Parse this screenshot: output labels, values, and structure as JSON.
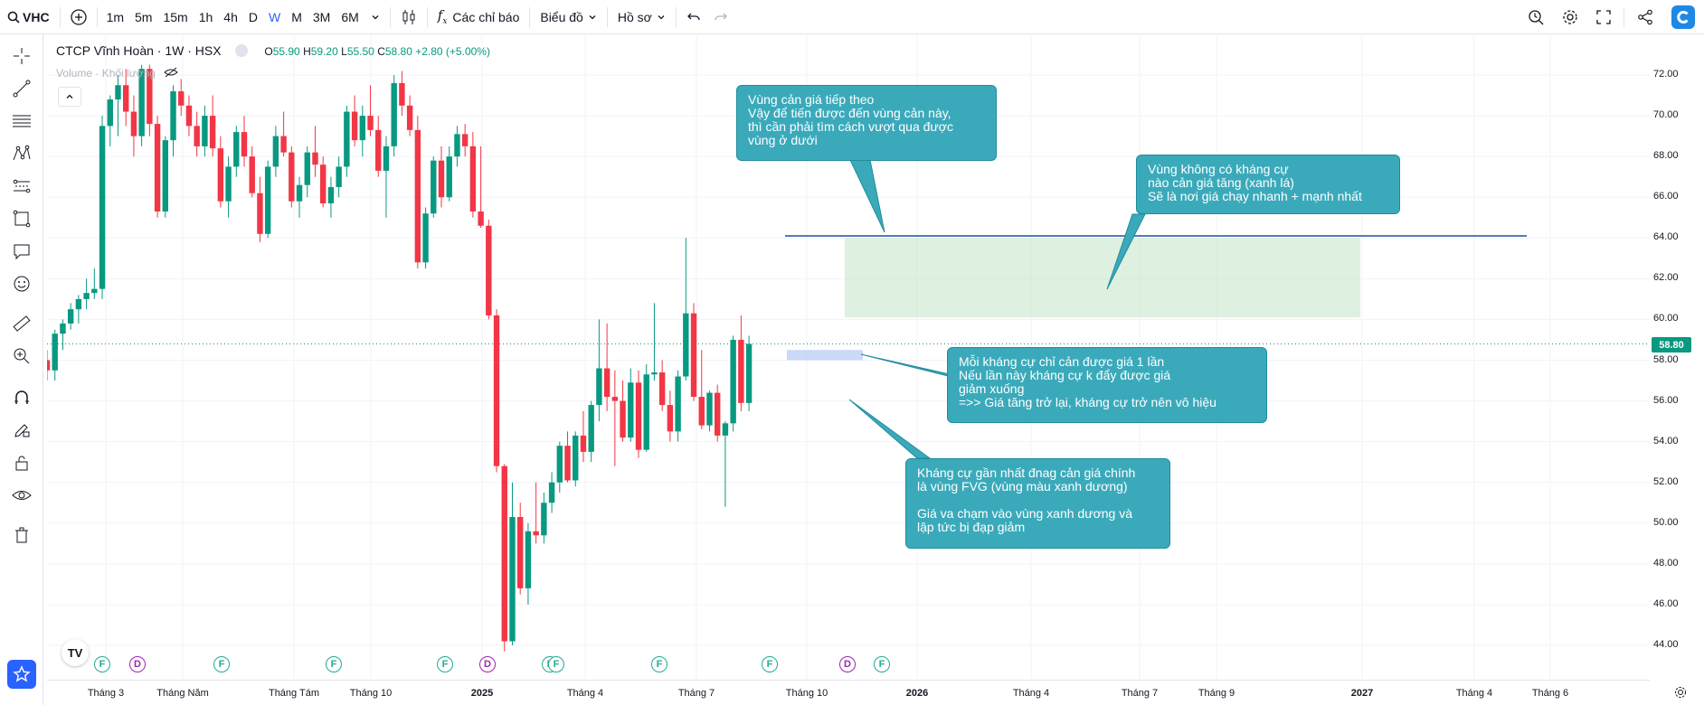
{
  "toolbar": {
    "symbol": "VHC",
    "intervals": [
      "1m",
      "5m",
      "15m",
      "1h",
      "4h",
      "D",
      "W",
      "M",
      "3M",
      "6M"
    ],
    "active_interval": "W",
    "indicators_label": "Các chỉ báo",
    "chart_label": "Biểu đồ",
    "profile_label": "Hồ sơ"
  },
  "legend": {
    "title": "CTCP Vĩnh Hoàn · 1W · HSX",
    "o_label": "O",
    "o": "55.90",
    "h_label": "H",
    "h": "59.20",
    "l_label": "L",
    "l": "55.50",
    "c_label": "C",
    "c": "58.80",
    "change": "+2.80 (+5.00%)",
    "volume_label": "Volume · Khối lượng"
  },
  "colors": {
    "up": "#089981",
    "down": "#f23645",
    "accent": "#2962ff",
    "note_bg": "#3aaabb"
  },
  "price_axis": {
    "ticks": [
      "72.00",
      "70.00",
      "68.00",
      "66.00",
      "64.00",
      "62.00",
      "60.00",
      "58.00",
      "56.00",
      "54.00",
      "52.00",
      "50.00",
      "48.00",
      "46.00",
      "44.00"
    ],
    "current_price": "58.80"
  },
  "time_axis": {
    "labels": [
      "Tháng 3",
      "Tháng Năm",
      "Tháng Tám",
      "Tháng 10",
      "2025",
      "Tháng 4",
      "Tháng 7",
      "Tháng 10",
      "2026",
      "Tháng 4",
      "Tháng 7",
      "Tháng 9",
      "2027",
      "Tháng 4",
      "Tháng 6"
    ]
  },
  "events": [
    "F",
    "D",
    "F",
    "F",
    "F",
    "D",
    "F",
    "F",
    "F",
    "F",
    "D",
    "F"
  ],
  "notes": {
    "next_resistance": [
      "Vùng cản giá tiếp theo",
      "Vậy để tiến được đến vùng cản này,",
      "thì cần phải tìm cách vượt qua được",
      "vùng ở dưới"
    ],
    "no_resistance": [
      "Vùng không có kháng cự",
      "nào cản giá tăng (xanh lá)",
      "Sẽ là nơi giá chạy nhanh + mạnh nhất"
    ],
    "each_resistance": [
      "Mỗi kháng cự chỉ cản được giá 1 lần",
      "Nếu lần này kháng cự k đẩy được giá",
      "giảm xuống",
      "=>> Giá tăng trở lại, kháng cự trở nên vô hiệu"
    ],
    "nearest_resistance": [
      "Kháng cự gần nhất đnag cản giá chính",
      "là vùng FVG (vùng màu xanh dương)",
      "",
      "Giá va chạm vào vùng xanh dương và",
      "lập tức bị đạp giảm"
    ]
  },
  "chart_data": {
    "type": "candlestick",
    "series": [
      {
        "name": "VHC",
        "ohlc": [
          [
            58.0,
            58.5,
            57.0,
            57.5
          ],
          [
            57.5,
            59.5,
            57.0,
            59.3
          ],
          [
            59.3,
            60.0,
            58.5,
            59.8
          ],
          [
            59.8,
            60.8,
            59.5,
            60.5
          ],
          [
            60.5,
            61.2,
            59.8,
            61.0
          ],
          [
            61.0,
            62.0,
            60.5,
            61.3
          ],
          [
            61.3,
            62.5,
            61.0,
            61.5
          ],
          [
            61.5,
            70.0,
            61.0,
            69.5
          ],
          [
            69.5,
            71.0,
            68.5,
            70.8
          ],
          [
            70.8,
            72.0,
            69.0,
            71.5
          ],
          [
            71.5,
            72.3,
            69.5,
            70.2
          ],
          [
            70.2,
            71.0,
            68.0,
            69.0
          ],
          [
            69.0,
            72.5,
            68.5,
            72.3
          ],
          [
            72.3,
            72.5,
            69.0,
            69.6
          ],
          [
            69.6,
            70.0,
            65.0,
            65.3
          ],
          [
            65.3,
            69.0,
            65.0,
            68.8
          ],
          [
            68.8,
            71.5,
            68.0,
            71.2
          ],
          [
            71.2,
            71.8,
            70.0,
            70.5
          ],
          [
            70.5,
            71.0,
            69.0,
            69.5
          ],
          [
            69.5,
            70.2,
            68.0,
            68.5
          ],
          [
            68.5,
            70.5,
            68.0,
            70.0
          ],
          [
            70.0,
            71.0,
            68.0,
            68.4
          ],
          [
            68.4,
            69.0,
            65.5,
            65.8
          ],
          [
            65.8,
            68.0,
            65.0,
            67.5
          ],
          [
            67.5,
            69.5,
            67.0,
            69.2
          ],
          [
            69.2,
            70.0,
            67.5,
            68.0
          ],
          [
            68.0,
            68.5,
            66.0,
            66.2
          ],
          [
            66.2,
            67.0,
            63.8,
            64.2
          ],
          [
            64.2,
            67.8,
            64.0,
            67.5
          ],
          [
            67.5,
            69.5,
            67.0,
            69.0
          ],
          [
            69.0,
            70.2,
            68.0,
            68.2
          ],
          [
            68.2,
            68.5,
            65.5,
            65.8
          ],
          [
            65.8,
            67.0,
            65.0,
            66.6
          ],
          [
            66.6,
            68.5,
            66.0,
            68.2
          ],
          [
            68.2,
            69.5,
            67.0,
            67.6
          ],
          [
            67.6,
            68.0,
            65.5,
            65.7
          ],
          [
            65.7,
            67.0,
            65.0,
            66.5
          ],
          [
            66.5,
            68.0,
            66.0,
            67.5
          ],
          [
            67.5,
            70.5,
            67.0,
            70.2
          ],
          [
            70.2,
            71.0,
            68.5,
            68.8
          ],
          [
            68.8,
            70.5,
            68.0,
            70.0
          ],
          [
            70.0,
            71.5,
            69.0,
            69.3
          ],
          [
            69.3,
            70.0,
            67.0,
            67.3
          ],
          [
            67.3,
            69.0,
            65.0,
            68.5
          ],
          [
            68.5,
            72.0,
            68.0,
            71.6
          ],
          [
            71.6,
            72.2,
            70.0,
            70.5
          ],
          [
            70.5,
            71.0,
            69.0,
            69.3
          ],
          [
            69.3,
            70.0,
            62.5,
            62.8
          ],
          [
            62.8,
            65.5,
            62.5,
            65.2
          ],
          [
            65.2,
            68.0,
            65.0,
            67.8
          ],
          [
            67.8,
            68.5,
            65.5,
            66.0
          ],
          [
            66.0,
            68.5,
            65.8,
            68.0
          ],
          [
            68.0,
            69.5,
            67.5,
            69.1
          ],
          [
            69.1,
            69.6,
            68.0,
            68.5
          ],
          [
            68.5,
            69.2,
            65.0,
            65.3
          ],
          [
            65.3,
            68.5,
            64.5,
            64.6
          ],
          [
            64.6,
            64.9,
            60.0,
            60.2
          ],
          [
            60.2,
            60.5,
            52.5,
            52.8
          ],
          [
            52.8,
            52.9,
            43.7,
            44.2
          ],
          [
            44.2,
            52.0,
            44.0,
            50.3
          ],
          [
            50.3,
            51.0,
            46.5,
            46.8
          ],
          [
            46.8,
            50.0,
            46.0,
            49.6
          ],
          [
            49.6,
            52.0,
            49.0,
            49.4
          ],
          [
            49.4,
            51.5,
            49.0,
            51.0
          ],
          [
            51.0,
            52.5,
            50.5,
            52.0
          ],
          [
            52.0,
            54.0,
            51.5,
            53.8
          ],
          [
            53.8,
            54.5,
            52.0,
            52.1
          ],
          [
            52.1,
            54.5,
            51.8,
            54.3
          ],
          [
            54.3,
            55.5,
            53.0,
            53.5
          ],
          [
            53.5,
            56.0,
            53.0,
            55.8
          ],
          [
            55.8,
            60.0,
            55.0,
            57.6
          ],
          [
            57.6,
            59.8,
            55.5,
            56.2
          ],
          [
            56.2,
            57.5,
            52.8,
            56.0
          ],
          [
            56.0,
            57.0,
            54.0,
            54.2
          ],
          [
            54.2,
            57.6,
            54.0,
            56.9
          ],
          [
            56.9,
            57.5,
            53.2,
            53.6
          ],
          [
            53.6,
            57.8,
            53.5,
            57.3
          ],
          [
            57.3,
            60.8,
            57.0,
            57.4
          ],
          [
            57.4,
            58.0,
            55.5,
            55.8
          ],
          [
            55.8,
            56.5,
            54.0,
            54.5
          ],
          [
            54.5,
            57.5,
            54.0,
            57.2
          ],
          [
            57.2,
            64.0,
            57.0,
            60.3
          ],
          [
            60.3,
            60.8,
            56.0,
            56.2
          ],
          [
            56.2,
            58.5,
            54.6,
            54.8
          ],
          [
            54.8,
            56.5,
            54.5,
            56.4
          ],
          [
            56.4,
            56.8,
            54.0,
            54.3
          ],
          [
            54.3,
            55.0,
            50.8,
            54.9
          ],
          [
            54.9,
            59.2,
            54.5,
            59.0
          ],
          [
            59.0,
            60.2,
            55.5,
            55.9
          ],
          [
            55.9,
            59.2,
            55.5,
            58.8
          ]
        ]
      },
      {
        "name": "FVG",
        "zone": [
          58.0,
          58.5
        ]
      },
      {
        "name": "no_resistance_zone",
        "zone": [
          60.1,
          64.0
        ]
      },
      {
        "name": "resistance_line",
        "level": 64.1
      }
    ],
    "ylim": [
      43,
      73
    ],
    "grid": true
  }
}
